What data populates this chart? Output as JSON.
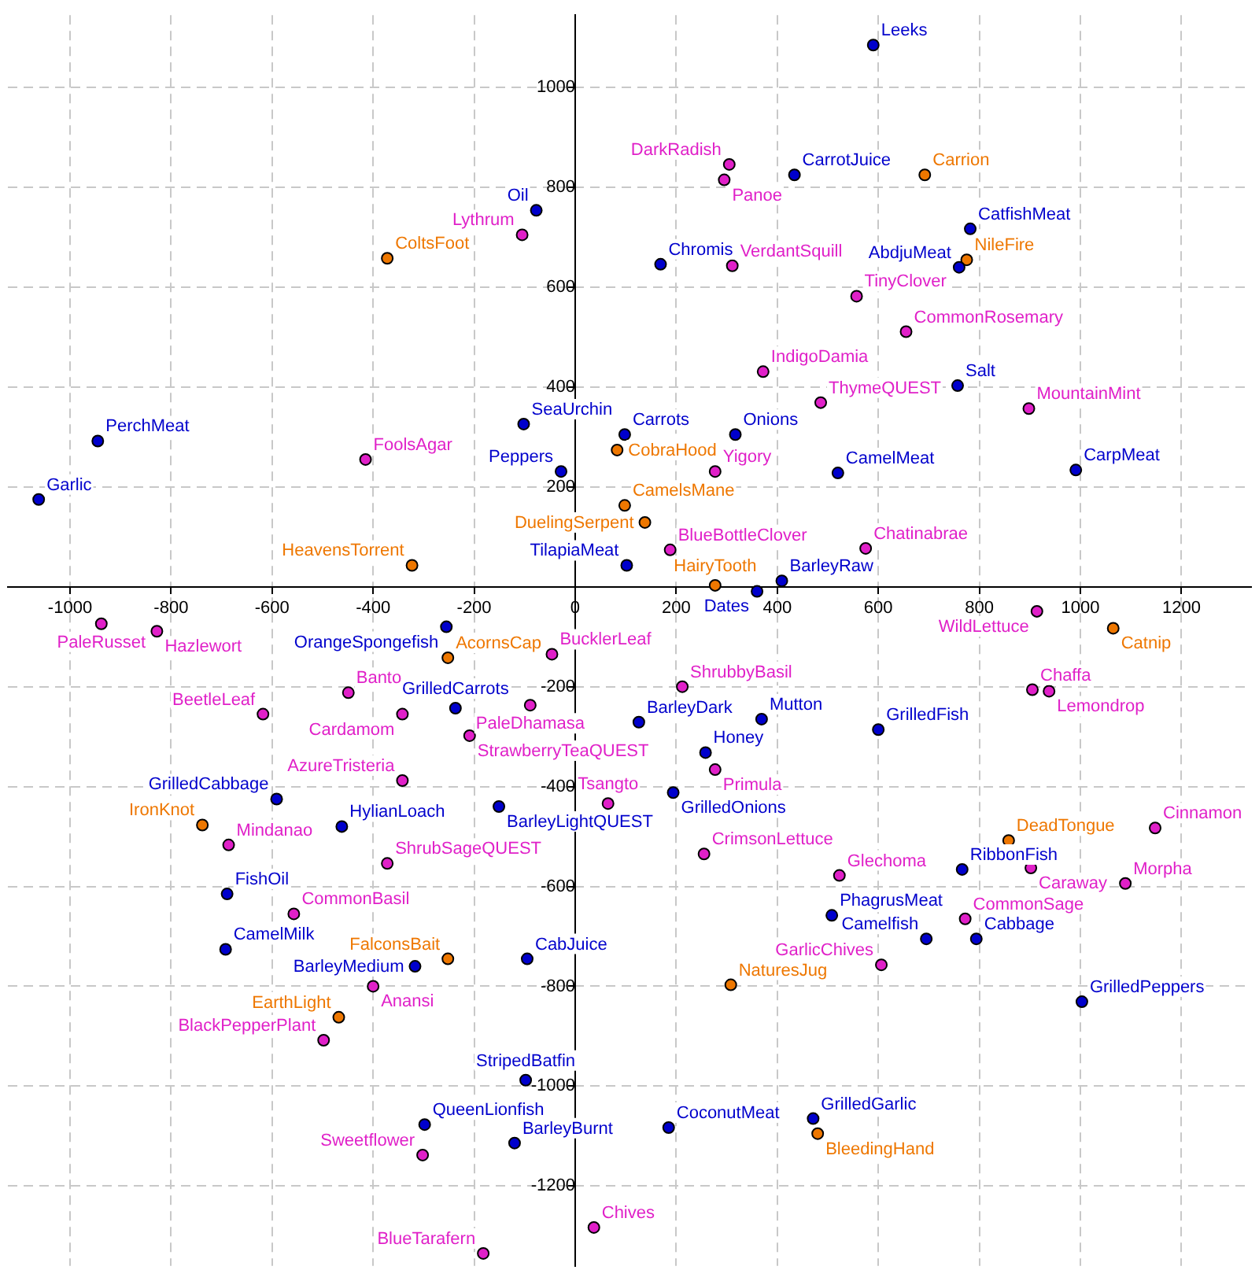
{
  "chart_data": {
    "type": "scatter",
    "marker": "circle",
    "grid": true,
    "legend": false,
    "xlim": [
      -1123,
      1338
    ],
    "ylim": [
      -1360,
      1145
    ],
    "xticks": [
      -1000,
      -800,
      -600,
      -400,
      -200,
      0,
      200,
      400,
      600,
      800,
      1000,
      1200
    ],
    "yticks": [
      -1200,
      -1000,
      -800,
      -600,
      -400,
      -200,
      {
        "value": 0,
        "label": null
      },
      200,
      400,
      600,
      800,
      1000
    ],
    "series": [
      {
        "color": "#0000cc",
        "x": [
          590,
          434,
          -77,
          782,
          169,
          760,
          757,
          -102,
          98,
          317,
          -945,
          520,
          991,
          -28,
          -1062,
          102,
          409,
          360,
          -255,
          -237,
          126,
          369,
          600,
          258,
          -591,
          -151,
          194,
          -462,
          766,
          -689,
          508,
          -692,
          695,
          794,
          -95,
          -317,
          1003,
          -98,
          471,
          -298,
          185,
          -120
        ],
        "values": [
          1085,
          825,
          754,
          717,
          646,
          640,
          403,
          326,
          305,
          305,
          292,
          228,
          234,
          231,
          175,
          43,
          12,
          -9,
          -80,
          -243,
          -271,
          -265,
          -286,
          -332,
          -425,
          -440,
          -412,
          -480,
          -566,
          -615,
          -658,
          -726,
          -705,
          -705,
          -745,
          -760,
          -831,
          -988,
          -1065,
          -1077,
          -1083,
          -1114
        ],
        "value_labels": [
          "Leeks",
          "CarrotJuice",
          "Oil",
          "CatfishMeat",
          "Chromis",
          "AbdjuMeat",
          "Salt",
          "SeaUrchin",
          "Carrots",
          "Onions",
          "PerchMeat",
          "CamelMeat",
          "CarpMeat",
          "Peppers",
          "Garlic",
          "TilapiaMeat",
          "BarleyRaw",
          "Dates",
          "OrangeSpongefish",
          "GrilledCarrots",
          "BarleyDark",
          "Mutton",
          "GrilledFish",
          "Honey",
          "GrilledCabbage",
          "BarleyLightQUEST",
          "GrilledOnions",
          "HylianLoach",
          "RibbonFish",
          "FishOil",
          "PhagrusMeat",
          "CamelMilk",
          "Camelfish",
          "Cabbage",
          "CabJuice",
          "BarleyMedium",
          "GrilledPeppers",
          "StripedBatfin",
          "GrilledGarlic",
          "QueenLionfish",
          "CoconutMeat",
          "BarleyBurnt"
        ]
      },
      {
        "color": "#e020c8",
        "x": [
          305,
          295,
          -105,
          311,
          557,
          655,
          372,
          486,
          898,
          -415,
          277,
          188,
          575,
          -938,
          -828,
          914,
          -46,
          212,
          -449,
          905,
          938,
          -89,
          -342,
          -618,
          -209,
          277,
          -342,
          65,
          1148,
          255,
          -686,
          -372,
          523,
          902,
          1089,
          -557,
          772,
          606,
          -400,
          -498,
          -302,
          37,
          -182
        ],
        "values": [
          846,
          815,
          705,
          643,
          582,
          511,
          431,
          369,
          357,
          255,
          231,
          74,
          77,
          -74,
          -89,
          -49,
          -135,
          -200,
          -212,
          -206,
          -209,
          -237,
          -255,
          -255,
          -298,
          -366,
          -388,
          -434,
          -483,
          -535,
          -517,
          -554,
          -578,
          -563,
          -594,
          -655,
          -665,
          -757,
          -800,
          -908,
          -1138,
          -1283,
          -1335
        ],
        "value_labels": [
          "DarkRadish",
          "Panoe",
          "Lythrum",
          "VerdantSquill",
          "TinyClover",
          "CommonRosemary",
          "IndigoDamia",
          "ThymeQUEST",
          "MountainMint",
          "FoolsAgar",
          "Yigory",
          "BlueBottleClover",
          "Chatinabrae",
          "PaleRusset",
          "Hazlewort",
          "WildLettuce",
          "BucklerLeaf",
          "ShrubbyBasil",
          "Banto",
          "Chaffa",
          "Lemondrop",
          "PaleDhamasa",
          "Cardamom",
          "BeetleLeaf",
          "StrawberryTeaQUEST",
          "Primula",
          "AzureTristeria",
          "Tsangto",
          "Cinnamon",
          "CrimsonLettuce",
          "Mindanao",
          "ShrubSageQUEST",
          "Glechoma",
          "Caraway",
          "Morpha",
          "CommonBasil",
          "CommonSage",
          "GarlicChives",
          "Anansi",
          "BlackPepperPlant",
          "Sweetflower",
          "Chives",
          "BlueTarafern"
        ]
      },
      {
        "color": "#ee7700",
        "x": [
          692,
          775,
          -372,
          83,
          98,
          138,
          -323,
          277,
          1065,
          -252,
          858,
          -738,
          -252,
          308,
          -468,
          480
        ],
        "values": [
          825,
          655,
          658,
          274,
          163,
          129,
          43,
          3,
          -83,
          -142,
          -508,
          -477,
          -745,
          -797,
          -862,
          -1095
        ],
        "value_labels": [
          "Carrion",
          "NileFire",
          "ColtsFoot",
          "CobraHood",
          "CamelsMane",
          "DuelingSerpent",
          "HeavensTorrent",
          "HairyTooth",
          "Catnip",
          "AcornsCap",
          "DeadTongue",
          "IronKnot",
          "FalconsBait",
          "NaturesJug",
          "EarthLight",
          "BleedingHand"
        ]
      }
    ]
  }
}
